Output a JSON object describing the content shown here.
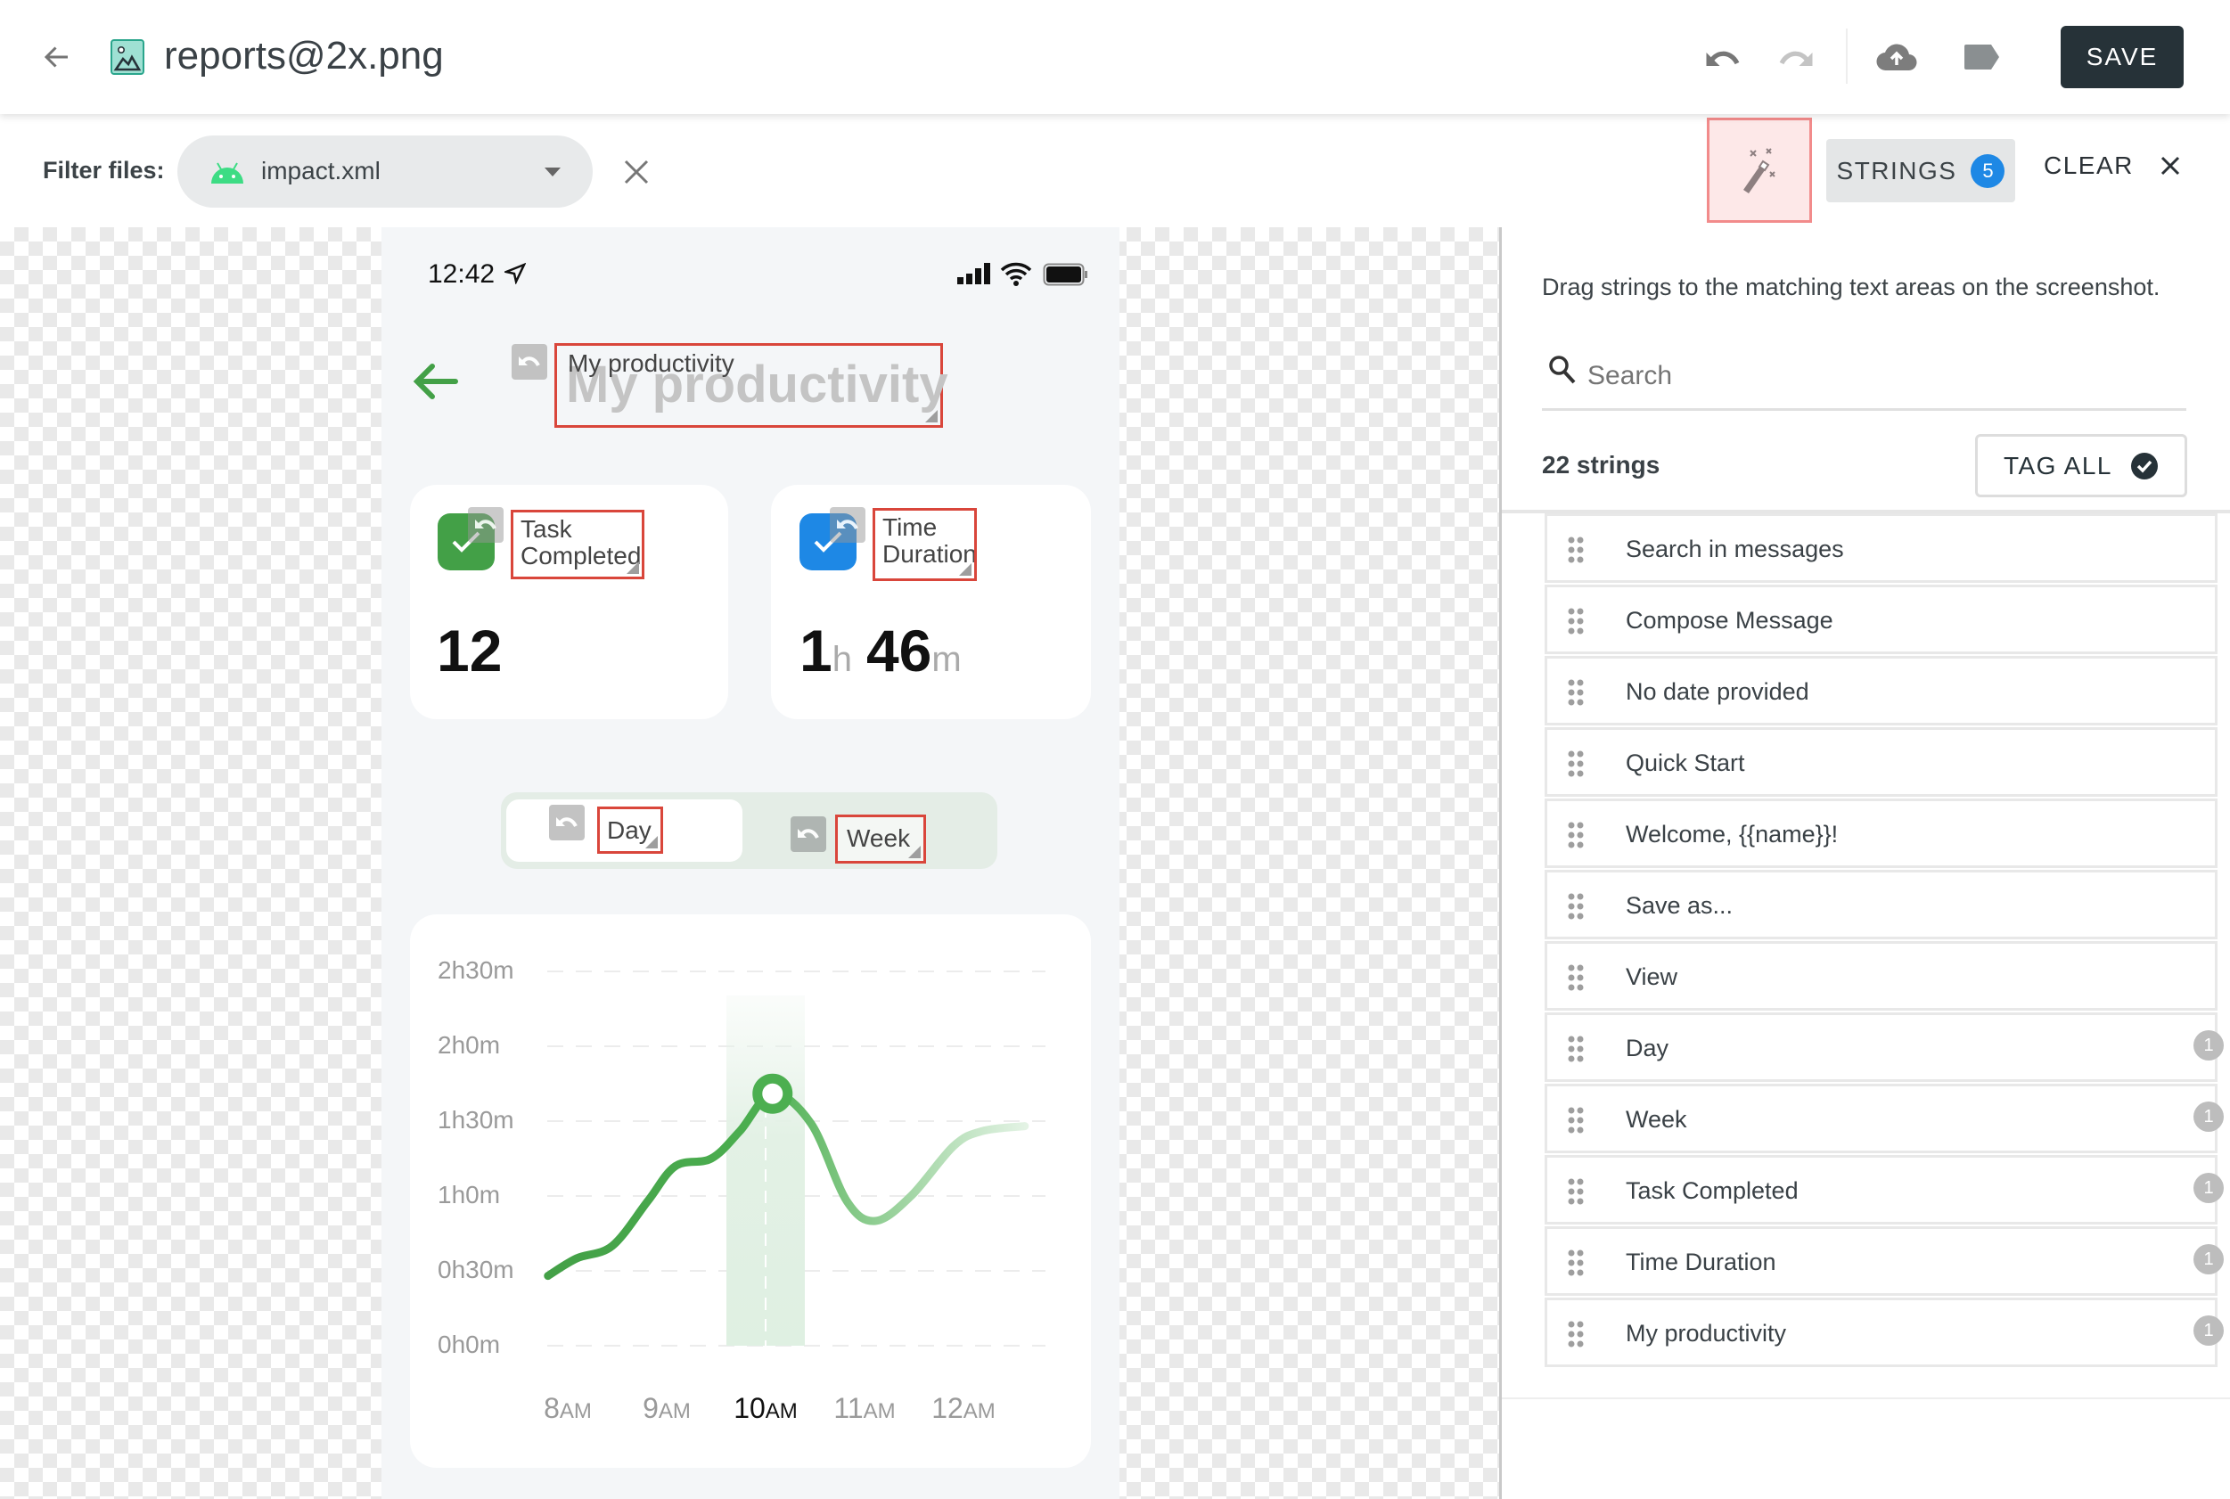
{
  "header": {
    "title": "reports@2x.png",
    "save_label": "SAVE"
  },
  "filter": {
    "label": "Filter files:",
    "selected_file": "impact.xml"
  },
  "toolbar": {
    "strings_label": "STRINGS",
    "strings_count": "5",
    "clear_label": "CLEAR"
  },
  "phone": {
    "status_time": "12:42",
    "title": "My productivity",
    "title_overlay": "My productivity",
    "cards": [
      {
        "label": "Task Completed",
        "overlay_1": "Task",
        "overlay_2": "Completed",
        "value": "12",
        "color": "#43a047"
      },
      {
        "label": "Time Duration",
        "overlay_1": "Time",
        "overlay_2": "Duration",
        "hours": "1",
        "hours_unit": "h",
        "minutes": "46",
        "minutes_unit": "m",
        "color": "#1e88e5"
      }
    ],
    "toggle": {
      "day": "Day",
      "week": "Week",
      "selected": "Day"
    }
  },
  "chart_data": {
    "type": "line",
    "x_tick_labels": [
      {
        "num": "8",
        "suffix": "AM"
      },
      {
        "num": "9",
        "suffix": "AM"
      },
      {
        "num": "10",
        "suffix": "AM"
      },
      {
        "num": "11",
        "suffix": "AM"
      },
      {
        "num": "12",
        "suffix": "AM"
      }
    ],
    "y_tick_labels": [
      "2h30m",
      "2h0m",
      "1h30m",
      "1h0m",
      "0h30m",
      "0h0m"
    ],
    "ylim_minutes": [
      0,
      150
    ],
    "highlighted_x": "10AM",
    "grid": true,
    "series": [
      {
        "points_hour_minutes": [
          [
            7.8,
            28
          ],
          [
            8.09,
            35
          ],
          [
            8.45,
            40
          ],
          [
            8.81,
            58
          ],
          [
            9.09,
            72
          ],
          [
            9.45,
            75
          ],
          [
            9.74,
            86
          ],
          [
            10.07,
            101
          ],
          [
            10.46,
            89
          ],
          [
            10.82,
            58
          ],
          [
            11.11,
            50
          ],
          [
            11.47,
            60
          ],
          [
            11.9,
            80
          ],
          [
            12.19,
            86
          ],
          [
            12.62,
            88
          ]
        ],
        "color": "#43a047"
      }
    ]
  },
  "panel": {
    "instructions": "Drag strings to the matching text areas on the screenshot.",
    "search_placeholder": "Search",
    "count_label": "22 strings",
    "tag_all_label": "TAG ALL",
    "strings": [
      {
        "label": "Search in messages"
      },
      {
        "label": "Compose Message"
      },
      {
        "label": "No date provided"
      },
      {
        "label": "Quick Start"
      },
      {
        "label": "Welcome, {{name}}!"
      },
      {
        "label": "Save as..."
      },
      {
        "label": "View"
      },
      {
        "label": "Day",
        "count": "1"
      },
      {
        "label": "Week",
        "count": "1"
      },
      {
        "label": "Task Completed",
        "count": "1"
      },
      {
        "label": "Time Duration",
        "count": "1"
      },
      {
        "label": "My productivity",
        "count": "1"
      }
    ]
  }
}
